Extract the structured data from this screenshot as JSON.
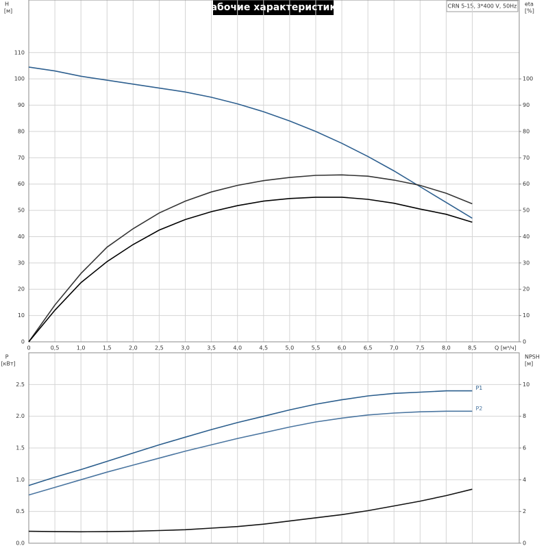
{
  "title": "Рабочие характеристики",
  "model": "CRN 5-15, 3*400 V, 50Hz",
  "chart_data": [
    {
      "type": "line",
      "y_label": "H",
      "y_unit": "[м]",
      "y2_label": "eta",
      "y2_unit": "[%]",
      "x_label": "Q [м³/ч]",
      "xlim": [
        0,
        9.4
      ],
      "xticks": [
        0,
        {
          "value": 0.5,
          "label": "0,5"
        },
        {
          "value": 1,
          "label": "1,0"
        },
        {
          "value": 1.5,
          "label": "1,5"
        },
        {
          "value": 2,
          "label": "2,0"
        },
        {
          "value": 2.5,
          "label": "2,5"
        },
        {
          "value": 3,
          "label": "3,0"
        },
        {
          "value": 3.5,
          "label": "3,5"
        },
        {
          "value": 4,
          "label": "4,0"
        },
        {
          "value": 4.5,
          "label": "4,5"
        },
        {
          "value": 5,
          "label": "5,0"
        },
        {
          "value": 5.5,
          "label": "5,5"
        },
        {
          "value": 6,
          "label": "6,0"
        },
        {
          "value": 6.5,
          "label": "6,5"
        },
        {
          "value": 7,
          "label": "7,0"
        },
        {
          "value": 7.5,
          "label": "7,5"
        },
        {
          "value": 8,
          "label": "8,0"
        },
        {
          "value": 8.5,
          "label": "8,5"
        }
      ],
      "ylim": [
        0,
        130
      ],
      "yticks": [
        0,
        10,
        20,
        30,
        40,
        50,
        60,
        70,
        80,
        90,
        100,
        110
      ],
      "y2lim": [
        0,
        130
      ],
      "y2ticks": [
        0,
        10,
        20,
        30,
        40,
        50,
        60,
        70,
        80,
        90,
        100
      ],
      "grid": true,
      "x": [
        0,
        0.5,
        1,
        1.5,
        2,
        2.5,
        3,
        3.5,
        4,
        4.5,
        5,
        5.5,
        6,
        6.5,
        7,
        7.5,
        8,
        8.5
      ],
      "series": [
        {
          "color": "#2d5f8f",
          "values": [
            104.5,
            103,
            101,
            99.5,
            98,
            96.5,
            95,
            93,
            90.5,
            87.5,
            84,
            80,
            75.5,
            70.5,
            65,
            59,
            53,
            47
          ]
        },
        {
          "color": "#333333",
          "axis": "y2",
          "values": [
            0,
            14,
            26,
            36,
            43,
            49,
            53.5,
            57,
            59.5,
            61.3,
            62.5,
            63.3,
            63.5,
            63,
            61.5,
            59.5,
            56.5,
            52.5
          ]
        },
        {
          "color": "#000000",
          "axis": "y2",
          "values": [
            0,
            12,
            22.5,
            30.5,
            37,
            42.5,
            46.5,
            49.5,
            51.8,
            53.5,
            54.5,
            55,
            55,
            54.2,
            52.7,
            50.5,
            48.5,
            45.5
          ]
        }
      ]
    },
    {
      "type": "line",
      "y_label": "P",
      "y_unit": "[кВт]",
      "y2_label": "NPSH",
      "y2_unit": "[м]",
      "ylim": [
        0,
        3
      ],
      "yticks": [
        {
          "value": 0,
          "label": "0.0"
        },
        0.5,
        {
          "value": 1,
          "label": "1.0"
        },
        1.5,
        {
          "value": 2,
          "label": "2.0"
        },
        2.5
      ],
      "y2lim": [
        0,
        12
      ],
      "y2ticks": [
        0,
        2,
        4,
        6,
        8,
        10
      ],
      "grid": true,
      "x": [
        0,
        0.5,
        1,
        1.5,
        2,
        2.5,
        3,
        3.5,
        4,
        4.5,
        5,
        5.5,
        6,
        6.5,
        7,
        7.5,
        8,
        8.5
      ],
      "series": [
        {
          "name": "P1",
          "color": "#2a5d8c",
          "values": [
            0.91,
            1.04,
            1.16,
            1.29,
            1.42,
            1.55,
            1.67,
            1.79,
            1.9,
            2.0,
            2.1,
            2.19,
            2.26,
            2.32,
            2.36,
            2.38,
            2.4,
            2.4
          ]
        },
        {
          "name": "P2",
          "color": "#4a75a0",
          "values": [
            0.76,
            0.88,
            1.0,
            1.12,
            1.23,
            1.34,
            1.45,
            1.55,
            1.65,
            1.74,
            1.83,
            1.91,
            1.97,
            2.02,
            2.05,
            2.07,
            2.08,
            2.08
          ]
        },
        {
          "color": "#111111",
          "axis": "y2",
          "values": [
            0.75,
            0.73,
            0.72,
            0.73,
            0.75,
            0.8,
            0.85,
            0.95,
            1.05,
            1.2,
            1.4,
            1.6,
            1.8,
            2.05,
            2.35,
            2.65,
            3.0,
            3.4
          ]
        }
      ]
    }
  ]
}
